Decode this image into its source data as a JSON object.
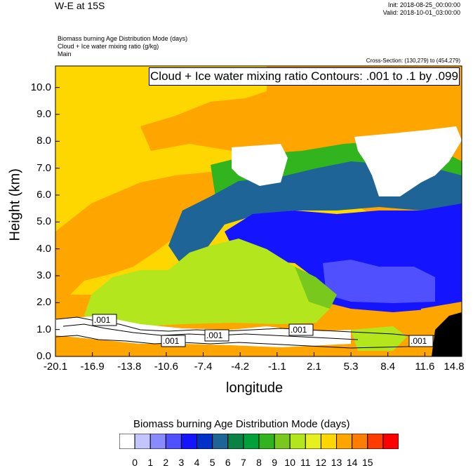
{
  "header": {
    "title": "W-E at 15S",
    "init": "Init: 2018-08-25_00:00:00",
    "valid": "Valid: 2018-10-01_03:00:00",
    "field1": "Biomass burning Age Distribution Mode    (days)",
    "field2": "Cloud + Ice water mixing ratio    (g/kg)",
    "field3": "Main",
    "cross_section": "Cross-Section: (130,279) to (454,279)",
    "contour_info": "Cloud + Ice water mixing ratio Contours: .001 to .1 by .099"
  },
  "chart_data": {
    "type": "heatmap",
    "xlabel": "longitude",
    "ylabel": "Height (km)",
    "x_ticks": [
      "-20.1",
      "-16.9",
      "-13.8",
      "-10.6",
      "-7.4",
      "-4.2",
      "-1.1",
      "2.1",
      "5.3",
      "8.4",
      "11.6",
      "14.8"
    ],
    "y_ticks": [
      "0.0",
      "1.0",
      "2.0",
      "3.0",
      "4.0",
      "5.0",
      "6.0",
      "7.0",
      "8.0",
      "9.0",
      "10.0"
    ],
    "xlim": [
      -20.1,
      14.8
    ],
    "ylim": [
      0,
      10.8
    ],
    "contour_labels": [
      ".001",
      ".001",
      ".001",
      ".001",
      ".001"
    ],
    "colorbar": {
      "title": "Biomass burning Age Distribution Mode  (days)",
      "levels": [
        "0",
        "1",
        "2",
        "3",
        "4",
        "5",
        "6",
        "7",
        "8",
        "9",
        "10",
        "11",
        "12",
        "13",
        "14",
        "15"
      ],
      "colors": [
        "#ffffff",
        "#c4c4ff",
        "#8a8aff",
        "#5050ff",
        "#1414ff",
        "#0032c8",
        "#1e6496",
        "#0a8246",
        "#00a03c",
        "#32b41e",
        "#78c81e",
        "#b4e61e",
        "#e6f01e",
        "#ffd700",
        "#ffa500",
        "#ff7d00",
        "#ff3c00",
        "#ff0000"
      ]
    }
  }
}
